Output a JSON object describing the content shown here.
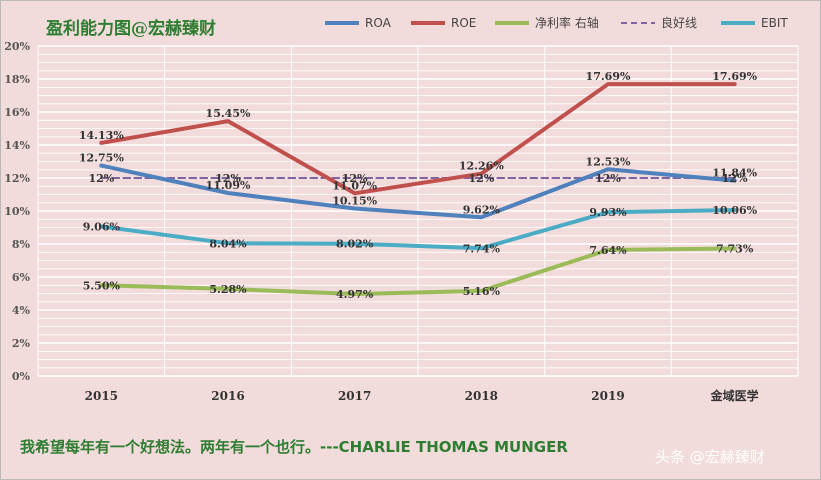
{
  "chart_data": {
    "type": "line",
    "title": "盈利能力图@宏赫臻财",
    "categories": [
      "2015",
      "2016",
      "2017",
      "2018",
      "2019",
      "金域医学"
    ],
    "ylim": [
      0,
      20
    ],
    "yticks": [
      "0%",
      "2%",
      "4%",
      "6%",
      "8%",
      "10%",
      "12%",
      "14%",
      "16%",
      "18%",
      "20%"
    ],
    "grid": true,
    "legend_position": "top-right",
    "series": [
      {
        "name": "ROA",
        "color": "#4f81bd",
        "values": [
          12.75,
          11.09,
          10.15,
          9.62,
          12.53,
          11.84
        ],
        "labels": [
          "12.75%",
          "11.09%",
          "10.15%",
          "9.62%",
          "12.53%",
          "11.84%"
        ]
      },
      {
        "name": "ROE",
        "color": "#c0504d",
        "values": [
          14.13,
          15.45,
          11.07,
          12.26,
          17.69,
          17.69
        ],
        "labels": [
          "14.13%",
          "15.45%",
          "11.07%",
          "12.26%",
          "17.69%",
          "17.69%"
        ]
      },
      {
        "name": "净利率 右轴",
        "color": "#9bbb59",
        "values": [
          5.5,
          5.28,
          4.97,
          5.16,
          7.64,
          7.73
        ],
        "labels": [
          "5.50%",
          "5.28%",
          "4.97%",
          "5.16%",
          "7.64%",
          "7.73%"
        ]
      },
      {
        "name": "良好线",
        "color": "#8064a2",
        "dashed": true,
        "values": [
          12,
          12,
          12,
          12,
          12,
          12
        ],
        "labels": [
          "12%",
          "12%",
          "12%",
          "12%",
          "12%",
          "12%"
        ]
      },
      {
        "name": "EBIT",
        "color": "#4bacc6",
        "values": [
          9.06,
          8.04,
          8.02,
          7.74,
          9.93,
          10.06
        ],
        "labels": [
          "9.06%",
          "8.04%",
          "8.02%",
          "7.74%",
          "9.93%",
          "10.06%"
        ]
      }
    ]
  },
  "footer": {
    "quote": "我希望每年有一个好想法。两年有一个也行。---CHARLIE THOMAS MUNGER",
    "watermark": "头条 @宏赫臻财"
  }
}
